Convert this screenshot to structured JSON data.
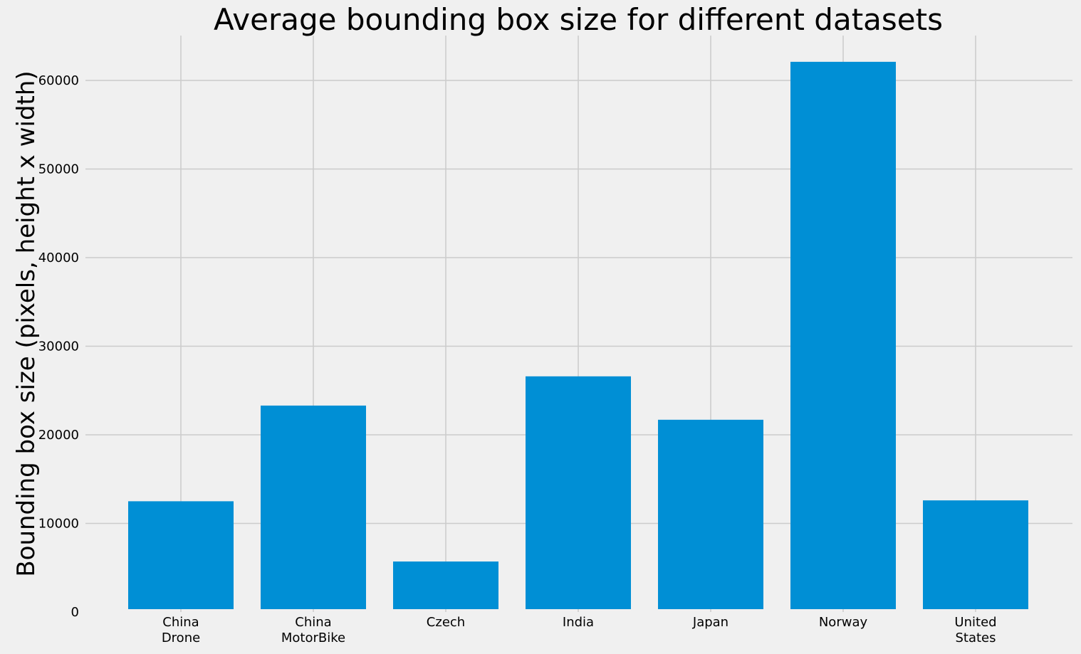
{
  "chart_data": {
    "type": "bar",
    "title": "Average bounding box size for different datasets",
    "xlabel": "",
    "ylabel": "Bounding box size (pixels, height x width)",
    "categories": [
      [
        "China",
        "Drone"
      ],
      [
        "China",
        "MotorBike"
      ],
      [
        "Czech"
      ],
      [
        "India"
      ],
      [
        "Japan"
      ],
      [
        "Norway"
      ],
      [
        "United",
        "States"
      ]
    ],
    "values": [
      12500,
      23300,
      5700,
      26600,
      21700,
      62100,
      12600
    ],
    "ylim": [
      0,
      65000
    ],
    "yticks": [
      0,
      10000,
      20000,
      30000,
      40000,
      50000,
      60000
    ],
    "ytick_labels": [
      "0",
      "10000",
      "20000",
      "30000",
      "40000",
      "50000",
      "60000"
    ],
    "grid": true,
    "legend": "none",
    "colors": {
      "bar": "#008fd5",
      "grid": "#cbcbcb",
      "background": "#f0f0f0",
      "text": "#000000"
    }
  }
}
